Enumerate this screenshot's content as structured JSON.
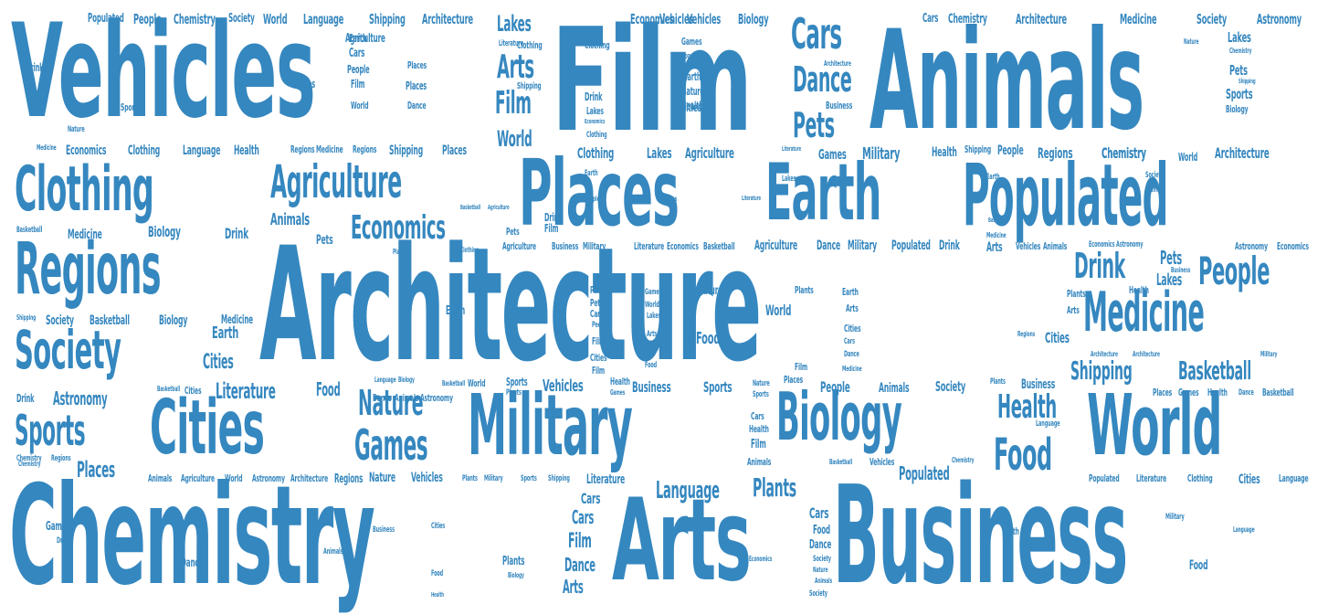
{
  "words": [
    "Vehicles",
    "Film",
    "Animals",
    "Architecture",
    "Chemistry",
    "Business",
    "Arts",
    "Military",
    "Places",
    "Earth",
    "Populated",
    "Clothing",
    "Regions",
    "Society",
    "Cities",
    "World",
    "Biology",
    "Medicine",
    "Agriculture",
    "Cars",
    "Sports",
    "Health",
    "Food",
    "Games",
    "Nature",
    "Economics",
    "People",
    "Drink",
    "Pets",
    "Dance",
    "Language",
    "Plants",
    "Shipping",
    "Basketball",
    "Literature",
    "Lakes",
    "Astronomy"
  ],
  "color": "#3587bf"
}
